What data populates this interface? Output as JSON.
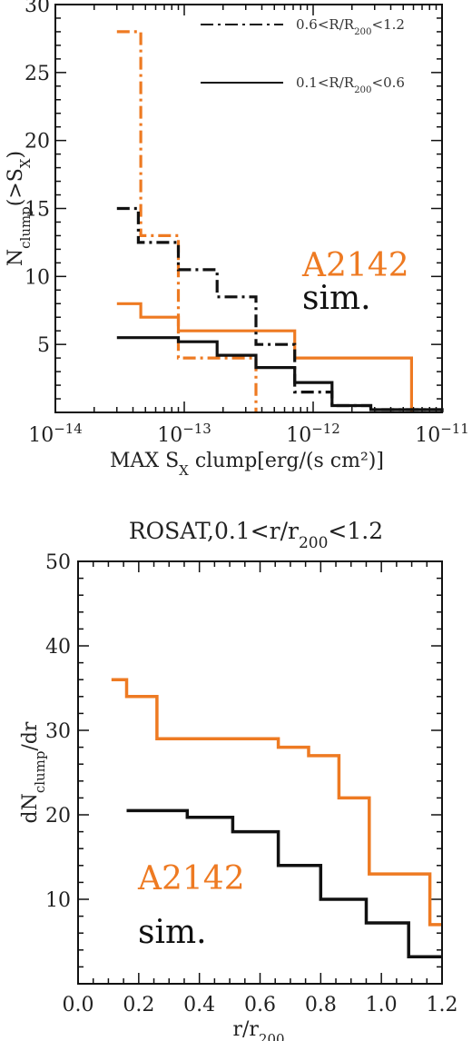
{
  "colors": {
    "orange": "#EE7A22",
    "black": "#111111"
  },
  "chart_data": [
    {
      "type": "line",
      "step": true,
      "xscale": "log",
      "xlim": [
        1e-14,
        1e-11
      ],
      "ylim": [
        0,
        30
      ],
      "x_ticks": [
        {
          "value": 1e-14,
          "base": "10",
          "exp": "−14"
        },
        {
          "value": 1e-13,
          "base": "10",
          "exp": "−13"
        },
        {
          "value": 1e-12,
          "base": "10",
          "exp": "−12"
        },
        {
          "value": 1e-11,
          "base": "10",
          "exp": "−11"
        }
      ],
      "y_ticks": [
        5,
        10,
        15,
        20,
        25,
        30
      ],
      "xlabel": {
        "pre": "MAX S",
        "sub": "X",
        "post": " clump[erg/(s cm²)]"
      },
      "ylabel": {
        "pre": "N",
        "sub": "clump",
        "post": "(>S",
        "sub2": "X",
        "post2": ")"
      },
      "legend": [
        {
          "style": "dashdot",
          "label": {
            "pre": "0.6<R/R",
            "sub": "200",
            "post": "<1.2"
          }
        },
        {
          "style": "solid",
          "label": {
            "pre": "0.1<R/R",
            "sub": "200",
            "post": "<0.6"
          }
        }
      ],
      "annotations": [
        {
          "text": "A2142",
          "color": "#EE7A22"
        },
        {
          "text": "sim.",
          "color": "#111111"
        }
      ],
      "series": [
        {
          "color": "#EE7A22",
          "style": "dashdot",
          "edges": [
            3e-14,
            4.6e-14,
            9e-14,
            3.6e-13
          ],
          "values": [
            28,
            13,
            4
          ]
        },
        {
          "color": "#EE7A22",
          "style": "solid",
          "edges": [
            3e-14,
            4.6e-14,
            9e-14,
            7.2e-13,
            5.8e-12
          ],
          "values": [
            8,
            7,
            6,
            4
          ]
        },
        {
          "color": "#111111",
          "style": "dashdot",
          "edges": [
            3e-14,
            4.4e-14,
            9e-14,
            1.8e-13,
            3.6e-13,
            7.2e-13,
            1.4e-12,
            2.8e-12,
            1e-11
          ],
          "values": [
            15,
            12.5,
            10.5,
            8.5,
            5,
            1.5,
            0.5,
            0.2
          ]
        },
        {
          "color": "#111111",
          "style": "solid",
          "edges": [
            3e-14,
            9e-14,
            1.8e-13,
            3.6e-13,
            7.2e-13,
            1.4e-12,
            2.8e-12,
            1e-11
          ],
          "values": [
            5.5,
            5.2,
            4.2,
            3.3,
            2.2,
            0.5,
            0.2
          ]
        }
      ]
    },
    {
      "type": "line",
      "step": true,
      "title": {
        "pre": "ROSAT,0.1<r/r",
        "sub": "200",
        "post": "<1.2"
      },
      "xlim": [
        0.0,
        1.2
      ],
      "ylim": [
        0,
        50
      ],
      "x_ticks": [
        "0.0",
        "0.2",
        "0.4",
        "0.6",
        "0.8",
        "1.0",
        "1.2"
      ],
      "y_ticks": [
        10,
        20,
        30,
        40,
        50
      ],
      "xlabel": {
        "pre": "r/r",
        "sub": "200",
        "post": ""
      },
      "ylabel": {
        "pre": "dN",
        "sub": "clump",
        "post": "/dr"
      },
      "annotations": [
        {
          "text": "A2142",
          "color": "#EE7A22"
        },
        {
          "text": "sim.",
          "color": "#111111"
        }
      ],
      "series": [
        {
          "color": "#EE7A22",
          "style": "solid",
          "edges": [
            0.11,
            0.16,
            0.26,
            0.36,
            0.5,
            0.66,
            0.76,
            0.86,
            0.96,
            1.06,
            1.16,
            1.2
          ],
          "values": [
            36,
            34,
            29,
            29,
            29,
            28,
            27,
            22,
            13,
            13,
            7
          ]
        },
        {
          "color": "#111111",
          "style": "solid",
          "edges": [
            0.16,
            0.36,
            0.51,
            0.66,
            0.8,
            0.95,
            1.09,
            1.2
          ],
          "values": [
            20.5,
            19.7,
            18,
            14,
            10,
            7.2,
            3.2
          ]
        }
      ]
    }
  ]
}
